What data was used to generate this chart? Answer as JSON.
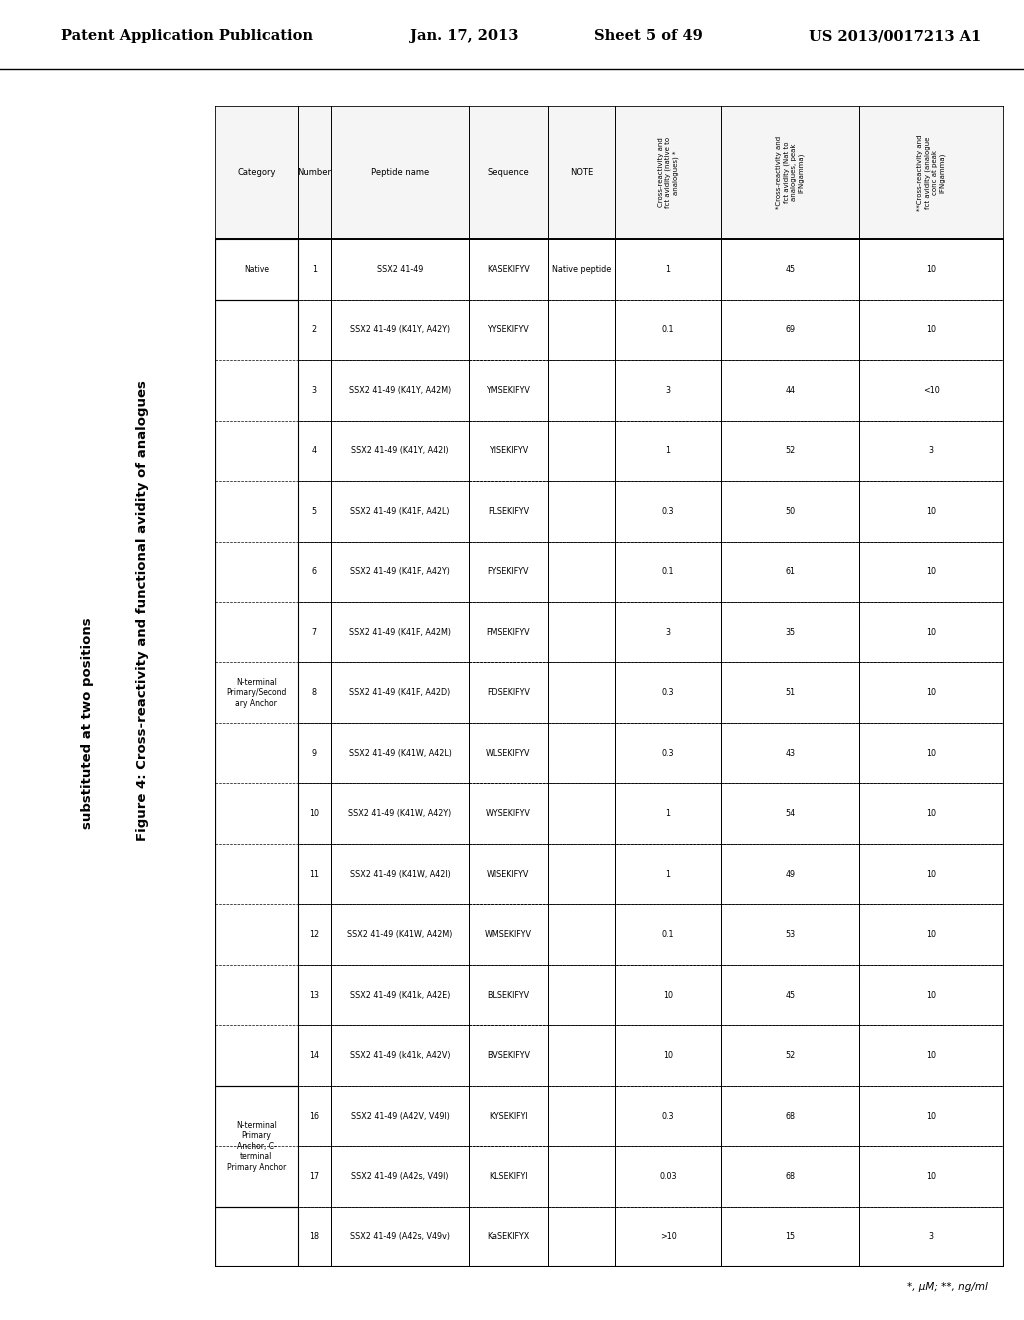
{
  "header_line1": "Patent Application Publication",
  "header_date": "Jan. 17, 2013",
  "header_sheet": "Sheet 5 of 49",
  "header_patent": "US 2013/0017213 A1",
  "figure_title_line1": "Figure 4: Cross-reactivity and functional avidity of analogues",
  "figure_title_line2": "substituted at two positions",
  "col_headers": [
    "Category",
    "Number",
    "Peptide name",
    "Sequence",
    "NOTE",
    "Cross-reactivity and\nfct avidity (native to\nanalogues) *",
    "*Cross-reactivity and\nfct avidity (Nat to\nanalogues, peak\nIFNgamma)",
    "**Cross-reactivity and\nfct avidity (analogue\nconc at peak\nIFNgamma)"
  ],
  "rows": [
    [
      "Native",
      "1",
      "SSX2 41-49",
      "KASEKIFYV",
      "Native peptide",
      "1",
      "45",
      "10"
    ],
    [
      "N-terminal\nPrimary/Second\nary Anchor",
      "2",
      "SSX2 41-49 (K41Y, A42Y)",
      "YYSEKIFYV",
      "",
      "0.1",
      "69",
      "10"
    ],
    [
      "",
      "3",
      "SSX2 41-49 (K41Y, A42M)",
      "YMSEKIFYV",
      "",
      "3",
      "44",
      "<10"
    ],
    [
      "",
      "4",
      "SSX2 41-49 (K41Y, A42I)",
      "YISEKIFYV",
      "",
      "1",
      "52",
      "3"
    ],
    [
      "",
      "5",
      "SSX2 41-49 (K41F, A42L)",
      "FLSEKIFYV",
      "",
      "0.3",
      "50",
      "10"
    ],
    [
      "",
      "6",
      "SSX2 41-49 (K41F, A42Y)",
      "FYSEKIFYV",
      "",
      "0.1",
      "61",
      "10"
    ],
    [
      "",
      "7",
      "SSX2 41-49 (K41F, A42M)",
      "FMSEKIFYV",
      "",
      "3",
      "35",
      "10"
    ],
    [
      "",
      "8",
      "SSX2 41-49 (K41F, A42D)",
      "FDSEKIFYV",
      "",
      "0.3",
      "51",
      "10"
    ],
    [
      "",
      "9",
      "SSX2 41-49 (K41W, A42L)",
      "WLSEKIFYV",
      "",
      "0.3",
      "43",
      "10"
    ],
    [
      "",
      "10",
      "SSX2 41-49 (K41W, A42Y)",
      "WYSEKIFYV",
      "",
      "1",
      "54",
      "10"
    ],
    [
      "",
      "11",
      "SSX2 41-49 (K41W, A42I)",
      "WISEKIFYV",
      "",
      "1",
      "49",
      "10"
    ],
    [
      "",
      "12",
      "SSX2 41-49 (K41W, A42M)",
      "WMSEKIFYV",
      "",
      "0.1",
      "53",
      "10"
    ],
    [
      "",
      "13",
      "SSX2 41-49 (K41k, A42E)",
      "BLSEKIFYV",
      "",
      "10",
      "45",
      "10"
    ],
    [
      "",
      "14",
      "SSX2 41-49 (k41k, A42V)",
      "BVSEKIFYV",
      "",
      "10",
      "52",
      "10"
    ],
    [
      "N-terminal\nPrimary\nAnchor, C-\nterminal",
      "16",
      "SSX2 41-49 (A42V, V49I)",
      "KYSEKIFYI",
      "",
      "0.3",
      "68",
      "10"
    ],
    [
      "Primary Anchor",
      "17",
      "SSX2 41-49 (A42s, V49I)",
      "KLSEKIFYI",
      "",
      "0.03",
      "68",
      "10"
    ],
    [
      "",
      "18",
      "SSX2 41-49 (A42s, V49v)",
      "KaSEKIFYX",
      "",
      ">10",
      "15",
      "3"
    ]
  ],
  "category_spans": [
    [
      0,
      0,
      "Native"
    ],
    [
      1,
      13,
      "N-terminal\nPrimary/Second\nary Anchor"
    ],
    [
      14,
      15,
      "N-terminal\nPrimary\nAnchor, C-\nterminal\nPrimary Anchor"
    ],
    [
      16,
      16,
      ""
    ]
  ],
  "footnote": "*, μM; **, ng/ml",
  "bg_color": "#ffffff",
  "border_color": "#000000",
  "text_color": "#000000"
}
